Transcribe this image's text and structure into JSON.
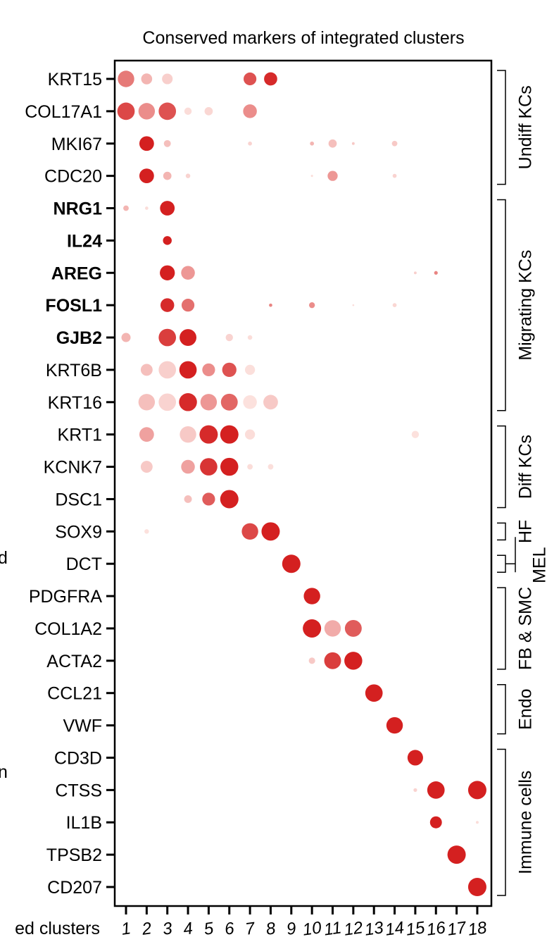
{
  "chart_data": {
    "type": "dotplot",
    "title": "Conserved markers of integrated clusters",
    "x_axis_fragment": "ed clusters",
    "left_edge_fragments": [
      "d",
      "n"
    ],
    "color_scale": {
      "low": "#fde7e3",
      "high": "#d42020"
    },
    "clusters": [
      "1",
      "2",
      "3",
      "4",
      "5",
      "6",
      "7",
      "8",
      "9",
      "10",
      "11",
      "12",
      "13",
      "14",
      "15",
      "16",
      "17",
      "18"
    ],
    "genes": [
      {
        "name": "KRT15",
        "bold": false
      },
      {
        "name": "COL17A1",
        "bold": false
      },
      {
        "name": "MKI67",
        "bold": false
      },
      {
        "name": "CDC20",
        "bold": false
      },
      {
        "name": "NRG1",
        "bold": true
      },
      {
        "name": "IL24",
        "bold": true
      },
      {
        "name": "AREG",
        "bold": true
      },
      {
        "name": "FOSL1",
        "bold": true
      },
      {
        "name": "GJB2",
        "bold": true
      },
      {
        "name": "KRT6B",
        "bold": false
      },
      {
        "name": "KRT16",
        "bold": false
      },
      {
        "name": "KRT1",
        "bold": false
      },
      {
        "name": "KCNK7",
        "bold": false
      },
      {
        "name": "DSC1",
        "bold": false
      },
      {
        "name": "SOX9",
        "bold": false
      },
      {
        "name": "DCT",
        "bold": false
      },
      {
        "name": "PDGFRA",
        "bold": false
      },
      {
        "name": "COL1A2",
        "bold": false
      },
      {
        "name": "ACTA2",
        "bold": false
      },
      {
        "name": "CCL21",
        "bold": false
      },
      {
        "name": "VWF",
        "bold": false
      },
      {
        "name": "CD3D",
        "bold": false
      },
      {
        "name": "CTSS",
        "bold": false
      },
      {
        "name": "IL1B",
        "bold": false
      },
      {
        "name": "TPSB2",
        "bold": false
      },
      {
        "name": "CD207",
        "bold": false
      }
    ],
    "points_note": "each point: [gene index, cluster index (0-based), dot size 0-1, expression level 0-1]",
    "points": [
      [
        0,
        0,
        0.9,
        0.55
      ],
      [
        0,
        1,
        0.6,
        0.25
      ],
      [
        0,
        2,
        0.58,
        0.12
      ],
      [
        0,
        6,
        0.7,
        0.75
      ],
      [
        0,
        7,
        0.72,
        0.95
      ],
      [
        1,
        0,
        0.95,
        0.8
      ],
      [
        1,
        1,
        0.9,
        0.45
      ],
      [
        1,
        2,
        0.95,
        0.75
      ],
      [
        1,
        3,
        0.4,
        0.05
      ],
      [
        1,
        4,
        0.45,
        0.08
      ],
      [
        1,
        6,
        0.75,
        0.45
      ],
      [
        2,
        1,
        0.8,
        1.0
      ],
      [
        2,
        2,
        0.38,
        0.2
      ],
      [
        2,
        6,
        0.22,
        0.1
      ],
      [
        2,
        9,
        0.22,
        0.25
      ],
      [
        2,
        10,
        0.45,
        0.2
      ],
      [
        2,
        11,
        0.15,
        0.15
      ],
      [
        2,
        13,
        0.3,
        0.15
      ],
      [
        3,
        1,
        0.8,
        1.0
      ],
      [
        3,
        2,
        0.45,
        0.25
      ],
      [
        3,
        3,
        0.25,
        0.1
      ],
      [
        3,
        9,
        0.12,
        0.05
      ],
      [
        3,
        10,
        0.55,
        0.4
      ],
      [
        3,
        13,
        0.22,
        0.1
      ],
      [
        4,
        0,
        0.3,
        0.25
      ],
      [
        4,
        1,
        0.18,
        0.05
      ],
      [
        4,
        2,
        0.8,
        1.0
      ],
      [
        5,
        2,
        0.48,
        1.0
      ],
      [
        6,
        2,
        0.82,
        1.0
      ],
      [
        6,
        3,
        0.75,
        0.4
      ],
      [
        6,
        14,
        0.15,
        0.12
      ],
      [
        6,
        15,
        0.2,
        0.5
      ],
      [
        7,
        2,
        0.75,
        0.95
      ],
      [
        7,
        3,
        0.7,
        0.6
      ],
      [
        7,
        7,
        0.18,
        0.5
      ],
      [
        7,
        9,
        0.32,
        0.45
      ],
      [
        7,
        11,
        0.1,
        0.05
      ],
      [
        7,
        13,
        0.22,
        0.08
      ],
      [
        8,
        0,
        0.5,
        0.25
      ],
      [
        8,
        2,
        0.95,
        0.85
      ],
      [
        8,
        3,
        0.92,
        1.0
      ],
      [
        8,
        5,
        0.4,
        0.1
      ],
      [
        8,
        6,
        0.25,
        0.05
      ],
      [
        9,
        1,
        0.65,
        0.2
      ],
      [
        9,
        2,
        0.95,
        0.12
      ],
      [
        9,
        3,
        0.95,
        1.0
      ],
      [
        9,
        4,
        0.7,
        0.45
      ],
      [
        9,
        5,
        0.78,
        0.75
      ],
      [
        9,
        6,
        0.55,
        0.04
      ],
      [
        10,
        1,
        0.9,
        0.2
      ],
      [
        10,
        2,
        0.95,
        0.1
      ],
      [
        10,
        3,
        0.98,
        0.95
      ],
      [
        10,
        4,
        0.9,
        0.4
      ],
      [
        10,
        5,
        0.92,
        0.65
      ],
      [
        10,
        6,
        0.75,
        0.03
      ],
      [
        10,
        7,
        0.8,
        0.15
      ],
      [
        11,
        1,
        0.8,
        0.35
      ],
      [
        11,
        3,
        0.9,
        0.15
      ],
      [
        11,
        4,
        1.0,
        0.95
      ],
      [
        11,
        5,
        1.0,
        1.0
      ],
      [
        11,
        6,
        0.55,
        0.05
      ],
      [
        11,
        14,
        0.4,
        0.03
      ],
      [
        12,
        1,
        0.65,
        0.15
      ],
      [
        12,
        3,
        0.75,
        0.35
      ],
      [
        12,
        4,
        0.95,
        0.9
      ],
      [
        12,
        5,
        0.98,
        1.0
      ],
      [
        12,
        6,
        0.3,
        0.05
      ],
      [
        12,
        7,
        0.3,
        0.04
      ],
      [
        13,
        3,
        0.42,
        0.2
      ],
      [
        13,
        4,
        0.7,
        0.7
      ],
      [
        13,
        5,
        1.0,
        1.0
      ],
      [
        14,
        1,
        0.25,
        0.03
      ],
      [
        14,
        6,
        0.9,
        0.8
      ],
      [
        14,
        7,
        1.0,
        1.0
      ],
      [
        15,
        8,
        1.0,
        1.0
      ],
      [
        16,
        9,
        0.9,
        1.0
      ],
      [
        17,
        9,
        1.0,
        1.0
      ],
      [
        17,
        10,
        0.9,
        0.3
      ],
      [
        17,
        11,
        0.92,
        0.7
      ],
      [
        18,
        9,
        0.35,
        0.15
      ],
      [
        18,
        10,
        0.92,
        0.85
      ],
      [
        18,
        11,
        0.98,
        1.0
      ],
      [
        19,
        12,
        0.95,
        1.0
      ],
      [
        20,
        13,
        0.9,
        1.0
      ],
      [
        21,
        14,
        0.85,
        1.0
      ],
      [
        22,
        14,
        0.2,
        0.1
      ],
      [
        22,
        15,
        0.95,
        1.0
      ],
      [
        22,
        17,
        1.0,
        1.0
      ],
      [
        23,
        15,
        0.65,
        1.0
      ],
      [
        23,
        17,
        0.15,
        0.05
      ],
      [
        24,
        16,
        1.0,
        1.0
      ],
      [
        25,
        17,
        1.0,
        1.0
      ]
    ],
    "groups": [
      {
        "label": "Undiff KCs",
        "first": 0,
        "last": 3
      },
      {
        "label": "Migrating KCs",
        "first": 4,
        "last": 10
      },
      {
        "label": "Diff KCs",
        "first": 11,
        "last": 13
      },
      {
        "label": "HF",
        "first": 14,
        "last": 14
      },
      {
        "label": "MEL",
        "first": 15,
        "last": 15
      },
      {
        "label": "FB & SMC",
        "first": 16,
        "last": 18
      },
      {
        "label": "Endo",
        "first": 19,
        "last": 20
      },
      {
        "label": "Immune cells",
        "first": 21,
        "last": 25
      }
    ]
  }
}
